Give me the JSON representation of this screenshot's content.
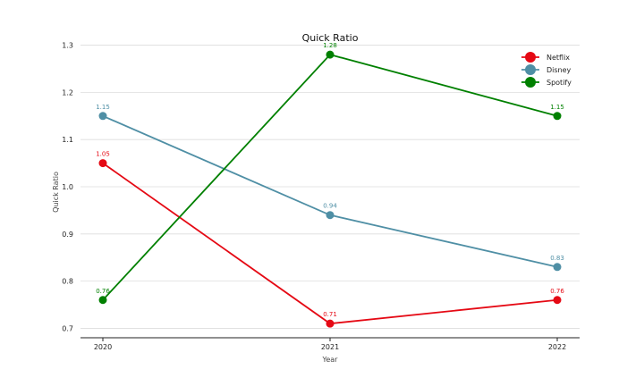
{
  "chart_data": {
    "type": "line",
    "title": "Quick Ratio",
    "xlabel": "Year",
    "ylabel": "Quick Ratio",
    "categories": [
      "2020",
      "2021",
      "2022"
    ],
    "ylim": [
      0.68,
      1.32
    ],
    "yticks": [
      0.7,
      0.8,
      0.9,
      1.0,
      1.1,
      1.2,
      1.3
    ],
    "ytick_labels": [
      "0.7",
      "0.8",
      "0.9",
      "1.0",
      "1.1",
      "1.2",
      "1.3"
    ],
    "grid": true,
    "legend_position": "top-right",
    "series": [
      {
        "name": "Netflix",
        "color": "#e50914",
        "values": [
          1.05,
          0.71,
          0.76
        ],
        "labels": [
          "1.05",
          "0.71",
          "0.76"
        ]
      },
      {
        "name": "Disney",
        "color": "#4f8fa5",
        "values": [
          1.15,
          0.94,
          0.83
        ],
        "labels": [
          "1.15",
          "0.94",
          "0.83"
        ]
      },
      {
        "name": "Spotify",
        "color": "#008000",
        "values": [
          0.76,
          1.28,
          1.15
        ],
        "labels": [
          "0.76",
          "1.28",
          "1.15"
        ]
      }
    ]
  }
}
